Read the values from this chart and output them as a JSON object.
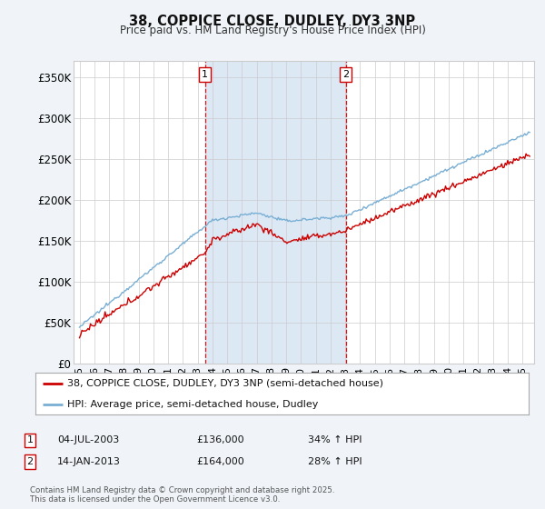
{
  "title1": "38, COPPICE CLOSE, DUDLEY, DY3 3NP",
  "title2": "Price paid vs. HM Land Registry's House Price Index (HPI)",
  "ylim": [
    0,
    370000
  ],
  "yticks": [
    0,
    50000,
    100000,
    150000,
    200000,
    250000,
    300000,
    350000
  ],
  "ytick_labels": [
    "£0",
    "£50K",
    "£100K",
    "£150K",
    "£200K",
    "£250K",
    "£300K",
    "£350K"
  ],
  "sale1_year": 2003.5,
  "sale1_date": "04-JUL-2003",
  "sale1_price": 136000,
  "sale1_pct": "34%",
  "sale2_year": 2013.05,
  "sale2_date": "14-JAN-2013",
  "sale2_price": 164000,
  "sale2_pct": "28%",
  "line1_label": "38, COPPICE CLOSE, DUDLEY, DY3 3NP (semi-detached house)",
  "line2_label": "HPI: Average price, semi-detached house, Dudley",
  "footer": "Contains HM Land Registry data © Crown copyright and database right 2025.\nThis data is licensed under the Open Government Licence v3.0.",
  "background_color": "#f0f4f8",
  "plot_bg": "#ffffff",
  "red_color": "#cc0000",
  "blue_color": "#7aafd4",
  "shaded_color": "#dce9f5",
  "vline_color": "#cc0000",
  "grid_color": "#cccccc",
  "xtick_years": [
    1995,
    1996,
    1997,
    1998,
    1999,
    2000,
    2001,
    2002,
    2003,
    2004,
    2005,
    2006,
    2007,
    2008,
    2009,
    2010,
    2011,
    2012,
    2013,
    2014,
    2015,
    2016,
    2017,
    2018,
    2019,
    2020,
    2021,
    2022,
    2023,
    2024,
    2025
  ]
}
